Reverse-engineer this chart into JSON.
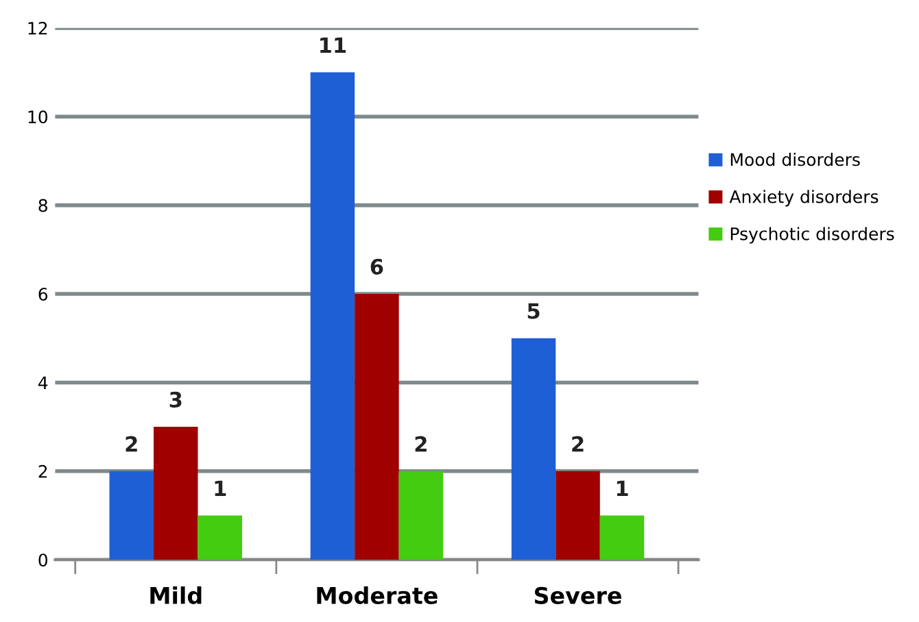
{
  "chart_data": {
    "type": "bar",
    "categories": [
      "Mild",
      "Moderate",
      "Severe"
    ],
    "series": [
      {
        "name": "Mood disorders",
        "color": "#1f5fd6",
        "values": [
          2,
          11,
          5
        ]
      },
      {
        "name": "Anxiety disorders",
        "color": "#a00000",
        "values": [
          3,
          6,
          2
        ]
      },
      {
        "name": "Psychotic disorders",
        "color": "#44cc11",
        "values": [
          1,
          2,
          1
        ]
      }
    ],
    "ylim": [
      0,
      12
    ],
    "yticks": [
      0,
      2,
      4,
      6,
      8,
      10,
      12
    ],
    "grid": "y",
    "legend": "right",
    "data_labels": true
  }
}
